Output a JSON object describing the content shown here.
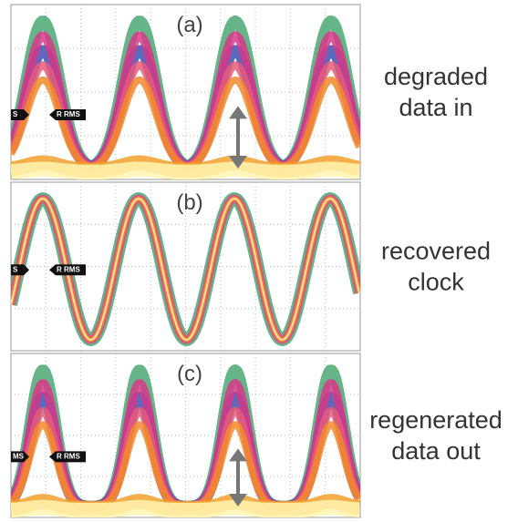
{
  "panels": [
    {
      "label": "(a)",
      "caption": [
        "degraded",
        "data in"
      ],
      "markers": [
        "S",
        "R RMS"
      ]
    },
    {
      "label": "(b)",
      "caption": [
        "recovered",
        "clock"
      ],
      "markers": [
        "S",
        "R RMS"
      ]
    },
    {
      "label": "(c)",
      "caption": [
        "regenerated",
        "data out"
      ],
      "markers": [
        "MS",
        "R RMS"
      ]
    }
  ]
}
